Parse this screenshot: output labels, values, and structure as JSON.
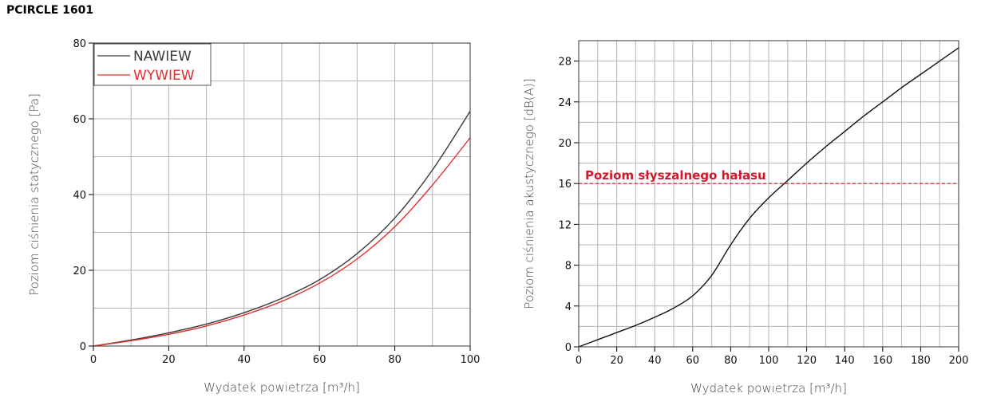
{
  "page_title": "PCIRCLE 1601",
  "colors": {
    "nawiew": "#3a3a3a",
    "wywiew": "#e03030",
    "noise": "#d0182a",
    "grid": "#b4b4b4"
  },
  "chart_data": [
    {
      "type": "line",
      "xlabel": "Wydatek powietrza [m³/h]",
      "ylabel": "Poziom ciśnienia statycznego [Pa]",
      "xlim": [
        0,
        100
      ],
      "ylim": [
        0,
        80
      ],
      "xticks": [
        "0",
        "20",
        "40",
        "60",
        "80",
        "100"
      ],
      "yticks": [
        "0",
        "20",
        "40",
        "60",
        "80"
      ],
      "grid": true,
      "legend": "top-left",
      "series": [
        {
          "name": "NAWIEW",
          "x": [
            0,
            10,
            20,
            30,
            40,
            50,
            60,
            70,
            80,
            90,
            100
          ],
          "y": [
            0,
            1.6,
            3.5,
            5.8,
            8.8,
            12.6,
            17.5,
            24.4,
            33.8,
            46.5,
            62.0
          ]
        },
        {
          "name": "WYWIEW",
          "x": [
            0,
            10,
            20,
            30,
            40,
            50,
            60,
            70,
            80,
            90,
            100
          ],
          "y": [
            0,
            1.4,
            3.1,
            5.3,
            8.2,
            11.8,
            16.6,
            23.0,
            31.5,
            42.5,
            55.0
          ]
        }
      ]
    },
    {
      "type": "line",
      "xlabel": "Wydatek powietrza [m³/h]",
      "ylabel": "Poziom ciśnienia akustycznego [dB(A)]",
      "xlim": [
        0,
        200
      ],
      "ylim": [
        0,
        30
      ],
      "xticks": [
        "0",
        "20",
        "40",
        "60",
        "80",
        "100",
        "120",
        "140",
        "160",
        "180",
        "200"
      ],
      "yticks": [
        "0",
        "4",
        "8",
        "12",
        "16",
        "20",
        "24",
        "28"
      ],
      "grid": true,
      "series": [
        {
          "x": [
            0,
            10,
            20,
            30,
            40,
            50,
            60,
            70,
            80,
            90,
            100,
            110,
            120,
            130,
            140,
            150,
            160,
            170,
            180,
            190,
            200
          ],
          "y": [
            0,
            0.7,
            1.4,
            2.1,
            2.9,
            3.8,
            5.0,
            7.0,
            10.0,
            12.6,
            14.6,
            16.3,
            18.0,
            19.6,
            21.1,
            22.6,
            24.0,
            25.4,
            26.7,
            28.0,
            29.3
          ]
        }
      ],
      "reference_line": {
        "y": 16,
        "label": "Poziom słyszalnego hałasu"
      }
    }
  ]
}
